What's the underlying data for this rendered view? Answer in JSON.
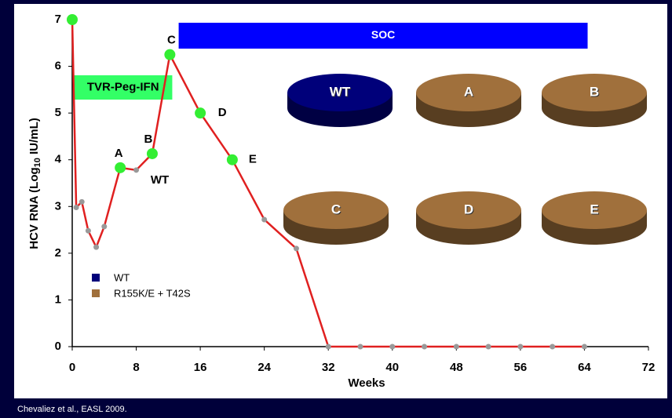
{
  "chart_data": {
    "type": "line",
    "xlabel": "Weeks",
    "ylabel_parts": [
      "HCV RNA (Log",
      "10",
      " IU/mL)"
    ],
    "xlim": [
      0,
      72
    ],
    "xticks": [
      0,
      8,
      16,
      24,
      32,
      40,
      48,
      56,
      64,
      72
    ],
    "ylim": [
      0,
      7
    ],
    "yticks": [
      0,
      1,
      2,
      3,
      4,
      5,
      6,
      7
    ],
    "grid": false,
    "series": [
      {
        "color": "#e02020",
        "marker_color": "#999999",
        "x": [
          0,
          0.5,
          1.2,
          2,
          3,
          4,
          6,
          8,
          10,
          12.2,
          16,
          20,
          24,
          28,
          32,
          36,
          40,
          44,
          48,
          52,
          56,
          60,
          64
        ],
        "values": [
          7,
          2.98,
          3.1,
          2.48,
          2.13,
          2.57,
          3.83,
          3.78,
          4.13,
          6.25,
          5,
          4,
          2.72,
          2.1,
          0,
          0,
          0,
          0,
          0,
          0,
          0,
          0,
          0
        ],
        "point_labels": [
          null,
          null,
          null,
          null,
          null,
          null,
          null,
          "WT",
          null,
          null,
          null,
          null,
          null,
          null,
          null,
          null,
          null,
          null,
          null,
          null,
          null,
          null,
          null
        ]
      },
      {
        "color": "#33ee33",
        "x": [
          0,
          6,
          10,
          12.2,
          16,
          20
        ],
        "values": [
          7,
          3.83,
          4.13,
          6.25,
          5,
          4
        ],
        "point_labels": [
          null,
          "A",
          "B",
          "C",
          "D",
          "E"
        ]
      }
    ],
    "phases": [
      {
        "label": "SOC",
        "start": 13.3,
        "end": 64.4,
        "color": "#0000ff",
        "text_color": "#ffffff"
      },
      {
        "label": "TVR-Peg-IFN",
        "start": 0.2,
        "end": 12.5,
        "color": "#33ff66",
        "text_color": "#000000"
      }
    ],
    "legend": [
      {
        "name": "WT",
        "color": "#00007a",
        "discs": [
          "WT"
        ]
      },
      {
        "name": "R155K/E + T42S",
        "color": "#a0703c",
        "discs": [
          "A",
          "B",
          "C",
          "D",
          "E"
        ]
      }
    ],
    "source": "Chevaliez  et al., EASL 2009."
  }
}
